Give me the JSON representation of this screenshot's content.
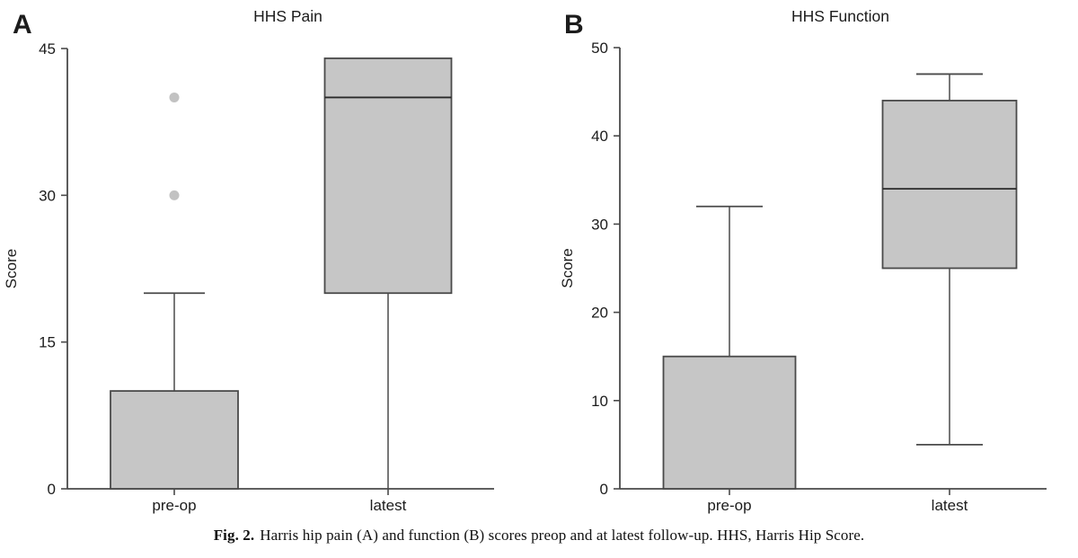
{
  "figure": {
    "caption": {
      "label": "Fig. 2.",
      "text": "Harris hip pain (A) and function (B) scores preop and at latest follow-up. HHS, Harris Hip Score."
    },
    "colors": {
      "box_fill": "#c6c6c6",
      "box_border": "#4a4a4a",
      "median": "#2a2a2a",
      "whisker": "#4a4a4a",
      "axis": "#4a4a4a",
      "outlier": "#c2c2c2",
      "text": "#1c1c1c"
    }
  },
  "chart_data": [
    {
      "panel": "A",
      "type": "box",
      "title": "HHS Pain",
      "ylabel": "Score",
      "xlabel": "",
      "ylim": [
        0,
        45
      ],
      "yticks": [
        0,
        15,
        30,
        45
      ],
      "categories": [
        "pre-op",
        "latest"
      ],
      "grid": false,
      "legend": false,
      "boxes": [
        {
          "category": "pre-op",
          "q1": 0,
          "median": null,
          "q3": 10,
          "whisker_high": 20,
          "whisker_low": null,
          "outliers": [
            30,
            40
          ]
        },
        {
          "category": "latest",
          "q1": 20,
          "median": 40,
          "q3": 44,
          "whisker_high": null,
          "whisker_low": 0,
          "cap_low": false,
          "outliers": []
        }
      ]
    },
    {
      "panel": "B",
      "type": "box",
      "title": "HHS Function",
      "ylabel": "Score",
      "xlabel": "",
      "ylim": [
        0,
        50
      ],
      "yticks": [
        0,
        10,
        20,
        30,
        40,
        50
      ],
      "categories": [
        "pre-op",
        "latest"
      ],
      "grid": false,
      "legend": false,
      "boxes": [
        {
          "category": "pre-op",
          "q1": 0,
          "median": null,
          "q3": 15,
          "whisker_high": 32,
          "whisker_low": null,
          "outliers": []
        },
        {
          "category": "latest",
          "q1": 25,
          "median": 34,
          "q3": 44,
          "whisker_high": 47,
          "whisker_low": 5,
          "outliers": []
        }
      ]
    }
  ]
}
